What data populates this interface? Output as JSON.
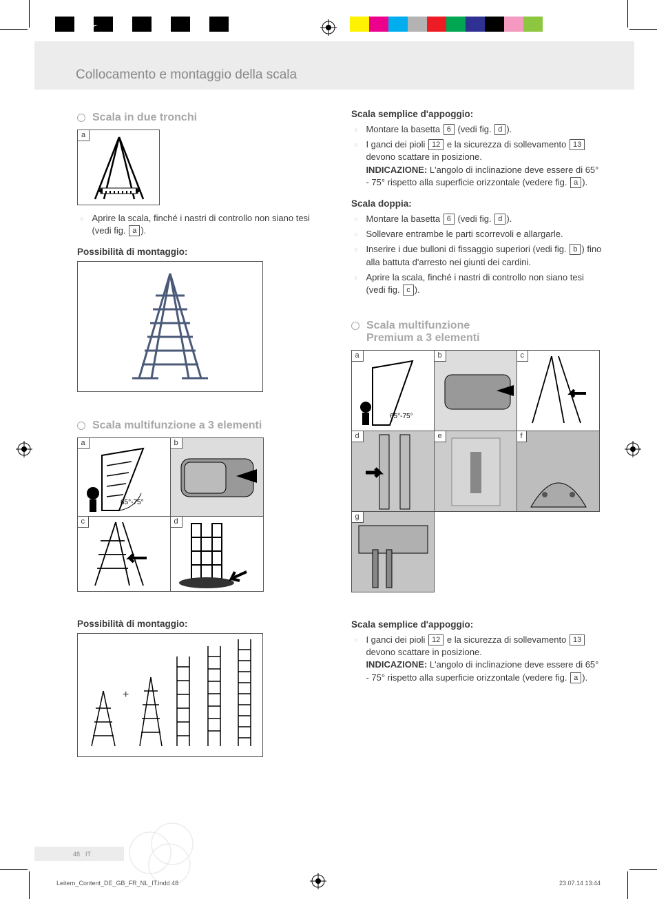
{
  "print": {
    "left_swatches": [
      "#000000",
      "#ffffff",
      "#000000",
      "#ffffff",
      "#000000",
      "#ffffff",
      "#000000",
      "#ffffff",
      "#000000"
    ],
    "right_swatches": [
      "#fff200",
      "#ec008c",
      "#00aeef",
      "#b3b3b3",
      "#ed1c24",
      "#00a651",
      "#2e3192",
      "#000000",
      "#f49ac1",
      "#8dc63f"
    ]
  },
  "header": {
    "title": "Collocamento e montaggio della scala"
  },
  "section1": {
    "heading": "Scala in due tronchi",
    "fig_a_label": "a",
    "bullet1_pre": "Aprire la scala, finché i nastri di controllo non siano tesi (vedi fig. ",
    "bullet1_ref": "a",
    "bullet1_post": ").",
    "sub": "Possibilità di montaggio:"
  },
  "section2": {
    "heading": "Scala multifunzione a 3 elementi",
    "fig_labels": {
      "a": "a",
      "b": "b",
      "c": "c",
      "d": "d"
    },
    "angle": "65°-75°",
    "sub": "Possibilità di montaggio:"
  },
  "right_top": {
    "title1": "Scala semplice d'appoggio:",
    "t1_l1_pre": "Montare la basetta ",
    "t1_l1_ref1": "6",
    "t1_l1_mid": " (vedi fig. ",
    "t1_l1_ref2": "d",
    "t1_l1_post": ").",
    "t1_l2_pre": "I ganci dei pioli ",
    "t1_l2_ref1": "12",
    "t1_l2_mid": " e la sicurezza di sollevamento ",
    "t1_l2_ref2": "13",
    "t1_l2_post": " devono scattare in posizione.",
    "t1_note_label": "INDICAZIONE:",
    "t1_note_txt_pre": " L'angolo di inclinazione deve essere di 65° - 75° rispetto alla superficie orizzontale (vedere fig. ",
    "t1_note_ref": "a",
    "t1_note_post": ").",
    "title2": "Scala doppia:",
    "t2_l1_pre": "Montare la basetta ",
    "t2_l1_ref1": "6",
    "t2_l1_mid": " (vedi fig. ",
    "t2_l1_ref2": "d",
    "t2_l1_post": ").",
    "t2_l2": "Sollevare entrambe le parti scorrevoli e allargarle.",
    "t2_l3_pre": "Inserire i due bulloni di fissaggio superiori (vedi fig. ",
    "t2_l3_ref": "b",
    "t2_l3_post": ") fino alla battuta d'arresto nei giunti dei cardini.",
    "t2_l4_pre": "Aprire la scala, finché i nastri di controllo non siano tesi (vedi fig. ",
    "t2_l4_ref": "c",
    "t2_l4_post": ")."
  },
  "section3": {
    "heading_l1": "Scala multifunzione",
    "heading_l2": "Premium a 3 elementi",
    "fig_labels": {
      "a": "a",
      "b": "b",
      "c": "c",
      "d": "d",
      "e": "e",
      "f": "f",
      "g": "g"
    },
    "angle": "65°-75°"
  },
  "right_bottom": {
    "title": "Scala semplice d'appoggio:",
    "l1_pre": "I ganci dei pioli ",
    "l1_ref1": "12",
    "l1_mid": " e la sicurezza di sollevamento ",
    "l1_ref2": "13",
    "l1_post": " devono scattare in posizione.",
    "note_label": "INDICAZIONE:",
    "note_pre": " L'angolo di inclinazione deve essere di 65° - 75° rispetto alla superficie orizzontale (vedere fig. ",
    "note_ref": "a",
    "note_post": ")."
  },
  "footer": {
    "page": "48",
    "lang": "IT",
    "slug": "Leitern_Content_DE_GB_FR_NL_IT.indd   48",
    "date": "23.07.14   13:44"
  }
}
